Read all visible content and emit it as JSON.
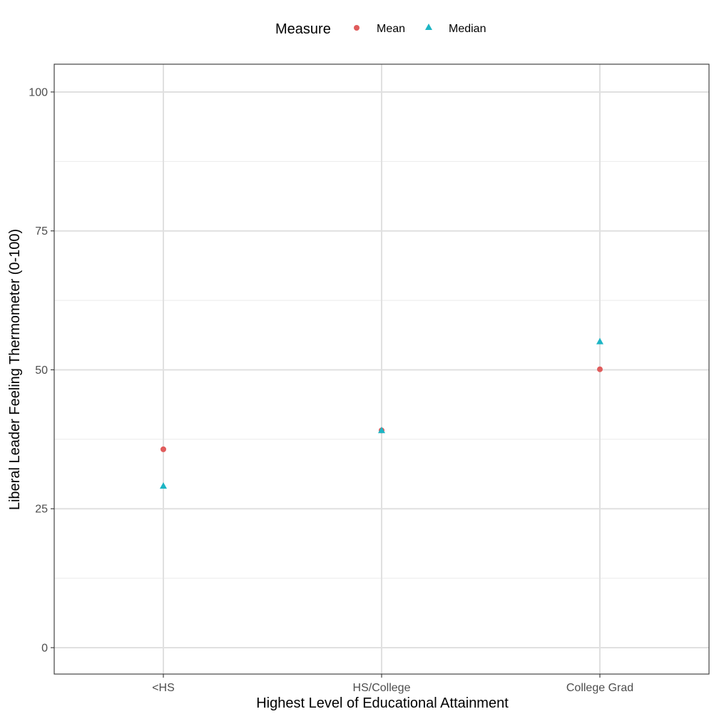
{
  "chart_data": {
    "type": "scatter",
    "categories": [
      "<HS",
      "HS/College",
      "College Grad"
    ],
    "series": [
      {
        "name": "Mean",
        "values": [
          35.7,
          39.1,
          50.1
        ],
        "color": "#e05c5c",
        "shape": "circle"
      },
      {
        "name": "Median",
        "values": [
          29.0,
          39.0,
          55.0
        ],
        "color": "#1db5c4",
        "shape": "triangle"
      }
    ],
    "xlabel": "Highest Level of Educational Attainment",
    "ylabel": "Liberal Leader Feeling Thermometer (0-100)",
    "ylim": [
      -4.75,
      105
    ],
    "yticks": [
      0,
      25,
      50,
      75,
      100
    ],
    "grid": true,
    "legend": {
      "title": "Measure",
      "position": "top"
    }
  }
}
